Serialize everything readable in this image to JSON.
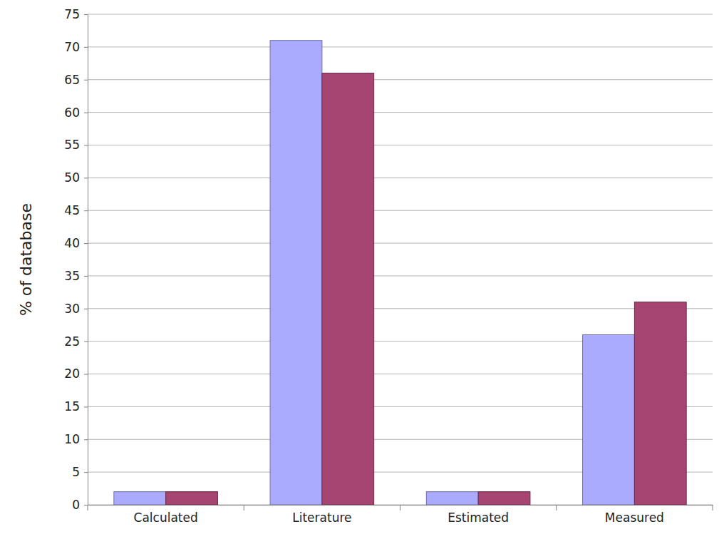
{
  "chart_data": {
    "type": "bar",
    "y_label": "% of database",
    "categories": [
      "Calculated",
      "Literature",
      "Estimated",
      "Measured"
    ],
    "series": [
      {
        "color": "#aaaaff",
        "values": [
          2,
          71,
          2,
          26
        ]
      },
      {
        "color": "#a64472",
        "values": [
          2,
          66,
          2,
          31
        ]
      }
    ],
    "ylim": [
      0,
      75
    ],
    "yticks": [
      0,
      5,
      10,
      15,
      20,
      25,
      30,
      35,
      40,
      45,
      50,
      55,
      60,
      65,
      70,
      75
    ],
    "grid": true
  }
}
